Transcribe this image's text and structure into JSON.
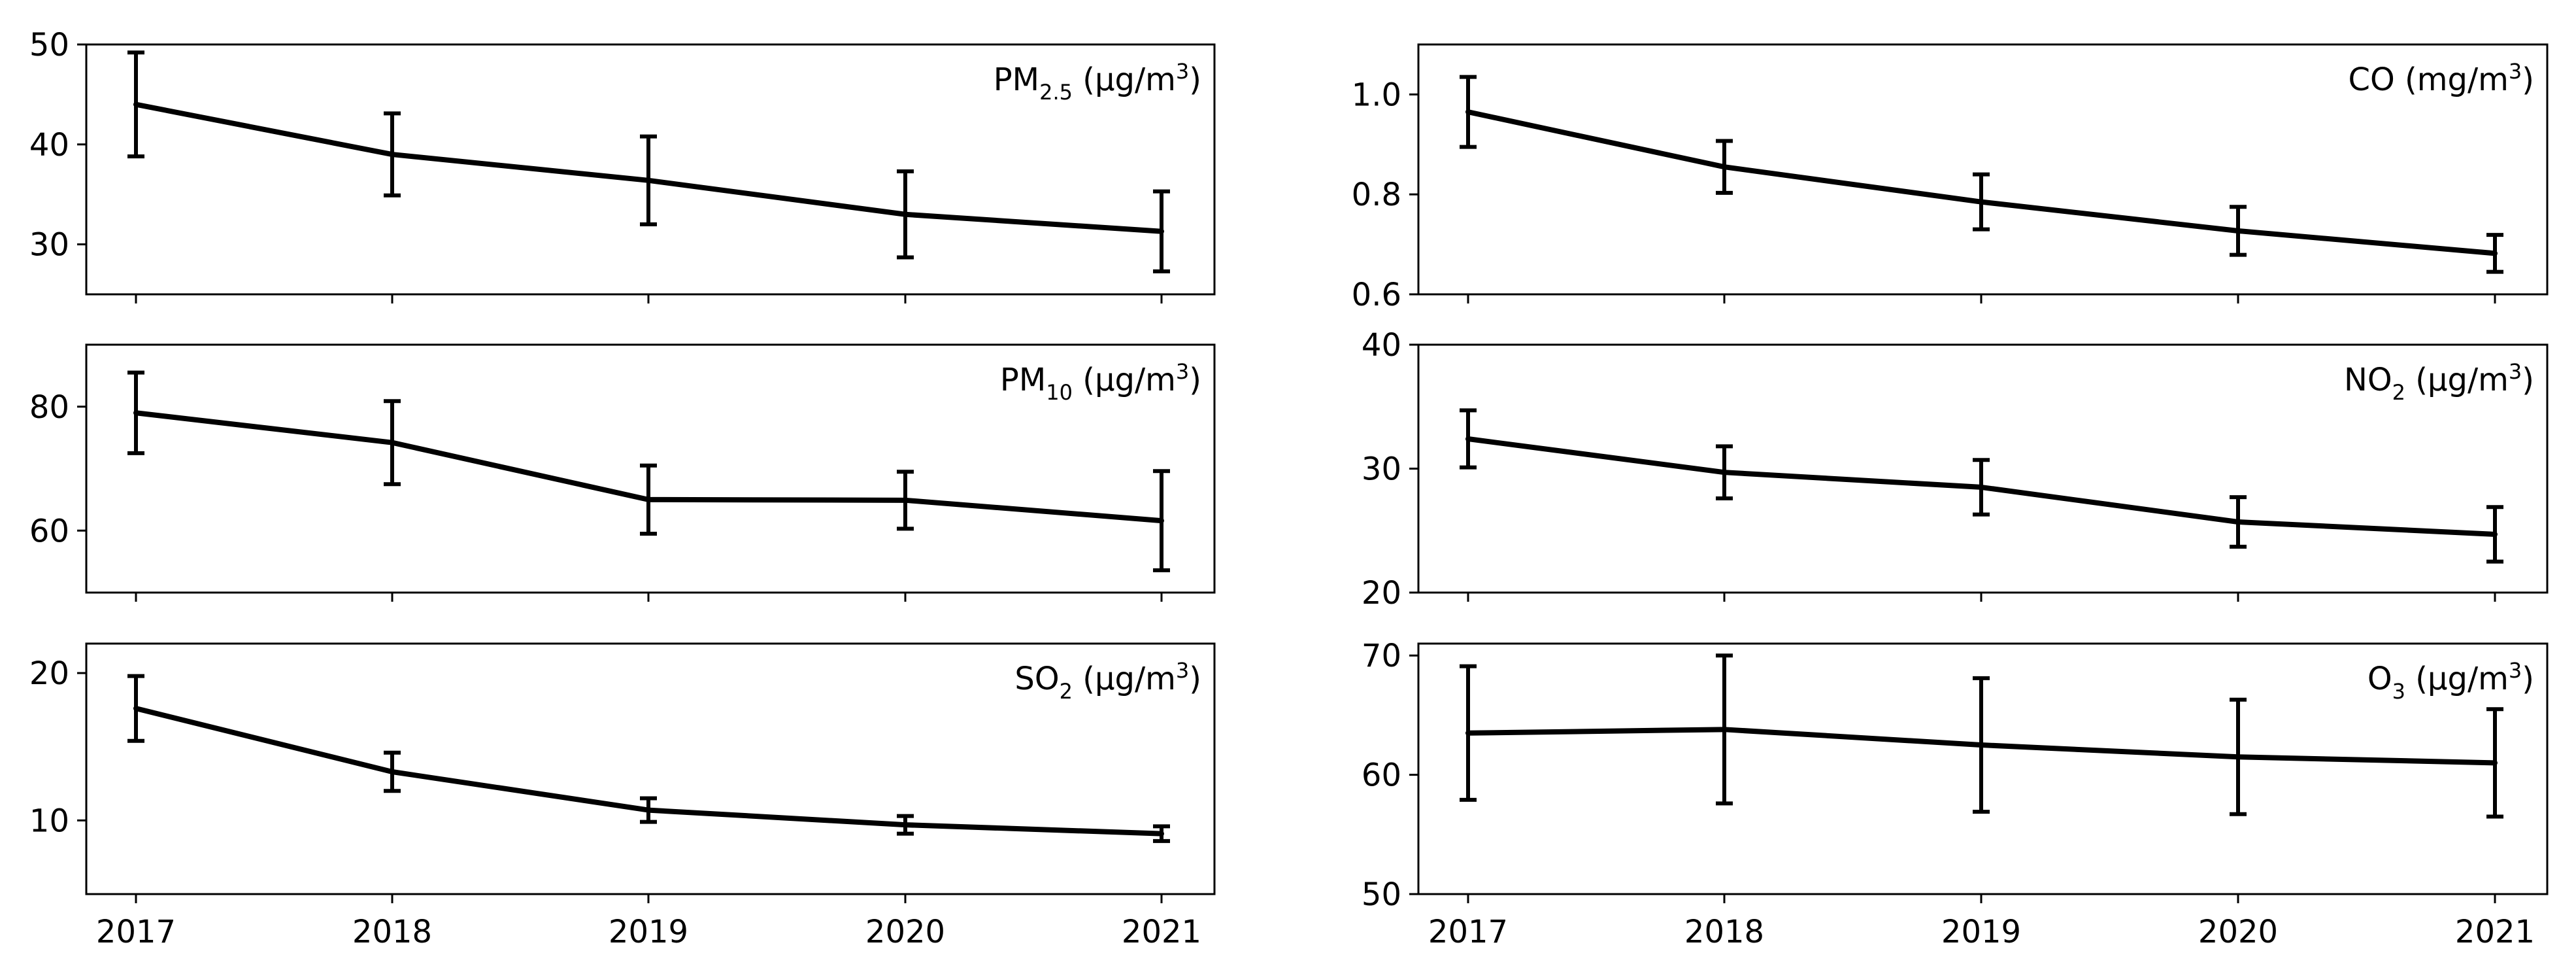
{
  "chart_data": [
    {
      "type": "line",
      "title_parts": [
        "PM",
        "2.5",
        " (µg/m",
        "3",
        ")"
      ],
      "x": [
        "2017",
        "2018",
        "2019",
        "2020",
        "2021"
      ],
      "series": [
        {
          "name": "PM2.5",
          "values": [
            44.0,
            39.0,
            36.4,
            33.0,
            31.3
          ],
          "errors": [
            5.2,
            4.1,
            4.4,
            4.3,
            4.0
          ]
        }
      ],
      "ylim": [
        25,
        50
      ],
      "yticks": [
        "30",
        "40",
        "50"
      ],
      "show_xtick_labels": false
    },
    {
      "type": "line",
      "title_parts": [
        "PM",
        "10",
        " (µg/m",
        "3",
        ")"
      ],
      "x": [
        "2017",
        "2018",
        "2019",
        "2020",
        "2021"
      ],
      "series": [
        {
          "name": "PM10",
          "values": [
            79.0,
            74.2,
            65.0,
            64.9,
            61.6
          ],
          "errors": [
            6.5,
            6.7,
            5.5,
            4.6,
            8.0
          ]
        }
      ],
      "ylim": [
        50,
        90
      ],
      "yticks": [
        "60",
        "80"
      ],
      "show_xtick_labels": false
    },
    {
      "type": "line",
      "title_parts": [
        "SO",
        "2",
        " (µg/m",
        "3",
        ")"
      ],
      "x": [
        "2017",
        "2018",
        "2019",
        "2020",
        "2021"
      ],
      "series": [
        {
          "name": "SO2",
          "values": [
            17.6,
            13.3,
            10.7,
            9.7,
            9.1
          ],
          "errors": [
            2.2,
            1.3,
            0.8,
            0.6,
            0.5
          ]
        }
      ],
      "ylim": [
        5,
        22
      ],
      "yticks": [
        "10",
        "20"
      ],
      "show_xtick_labels": true
    },
    {
      "type": "line",
      "title_parts": [
        "CO (mg/m",
        "",
        "",
        "3",
        ")"
      ],
      "x": [
        "2017",
        "2018",
        "2019",
        "2020",
        "2021"
      ],
      "series": [
        {
          "name": "CO",
          "values": [
            0.965,
            0.855,
            0.785,
            0.727,
            0.682
          ],
          "errors": [
            0.07,
            0.052,
            0.055,
            0.048,
            0.037
          ]
        }
      ],
      "ylim": [
        0.6,
        1.1
      ],
      "yticks": [
        "0.6",
        "0.8",
        "1.0"
      ],
      "show_xtick_labels": false
    },
    {
      "type": "line",
      "title_parts": [
        "NO",
        "2",
        " (µg/m",
        "3",
        ")"
      ],
      "x": [
        "2017",
        "2018",
        "2019",
        "2020",
        "2021"
      ],
      "series": [
        {
          "name": "NO2",
          "values": [
            32.4,
            29.7,
            28.5,
            25.7,
            24.7
          ],
          "errors": [
            2.3,
            2.1,
            2.2,
            2.0,
            2.2
          ]
        }
      ],
      "ylim": [
        20,
        40
      ],
      "yticks": [
        "20",
        "30",
        "40"
      ],
      "show_xtick_labels": false
    },
    {
      "type": "line",
      "title_parts": [
        "O",
        "3",
        " (µg/m",
        "3",
        ")"
      ],
      "x": [
        "2017",
        "2018",
        "2019",
        "2020",
        "2021"
      ],
      "series": [
        {
          "name": "O3",
          "values": [
            63.5,
            63.8,
            62.5,
            61.5,
            61.0
          ],
          "errors": [
            5.6,
            6.2,
            5.6,
            4.8,
            4.5
          ]
        }
      ],
      "ylim": [
        50,
        71
      ],
      "yticks": [
        "50",
        "60",
        "70"
      ],
      "show_xtick_labels": true
    }
  ],
  "style": {
    "line_color": "#000000",
    "background": "#ffffff"
  }
}
